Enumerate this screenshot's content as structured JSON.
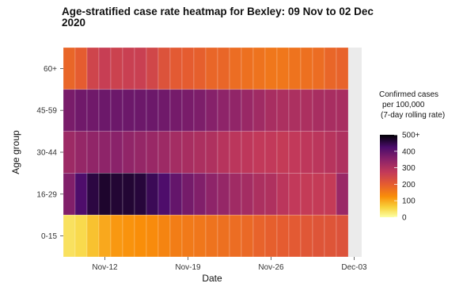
{
  "chart_data": {
    "type": "heatmap",
    "title_line1": "Age-stratified case rate heatmap for Bexley: 09 Nov to 02 Dec",
    "title_line2": "2020",
    "xlabel": "Date",
    "ylabel": "Age group",
    "x_start": "2020-11-09",
    "x_ticks": [
      {
        "label": "Nov-12",
        "date": "2020-11-12"
      },
      {
        "label": "Nov-19",
        "date": "2020-11-19"
      },
      {
        "label": "Nov-26",
        "date": "2020-11-26"
      },
      {
        "label": "Dec-03",
        "date": "2020-12-03"
      }
    ],
    "y_categories": [
      "60+",
      "45-59",
      "30-44",
      "16-29",
      "0-15"
    ],
    "dates": [
      "2020-11-09",
      "2020-11-10",
      "2020-11-11",
      "2020-11-12",
      "2020-11-13",
      "2020-11-14",
      "2020-11-15",
      "2020-11-16",
      "2020-11-17",
      "2020-11-18",
      "2020-11-19",
      "2020-11-20",
      "2020-11-21",
      "2020-11-22",
      "2020-11-23",
      "2020-11-24",
      "2020-11-25",
      "2020-11-26",
      "2020-11-27",
      "2020-11-28",
      "2020-11-29",
      "2020-11-30",
      "2020-12-01",
      "2020-12-02"
    ],
    "values": {
      "60+": [
        185,
        200,
        250,
        265,
        255,
        260,
        260,
        245,
        220,
        205,
        200,
        195,
        185,
        185,
        175,
        170,
        165,
        160,
        160,
        165,
        170,
        175,
        185,
        190
      ],
      "45-59": [
        370,
        380,
        380,
        385,
        385,
        385,
        385,
        385,
        380,
        375,
        370,
        365,
        355,
        345,
        340,
        330,
        320,
        310,
        305,
        305,
        305,
        310,
        310,
        310
      ],
      "30-44": [
        325,
        335,
        340,
        345,
        350,
        340,
        335,
        330,
        325,
        315,
        310,
        305,
        300,
        290,
        285,
        280,
        275,
        275,
        270,
        275,
        280,
        285,
        290,
        300
      ],
      "16-29": [
        360,
        420,
        455,
        470,
        465,
        465,
        460,
        440,
        420,
        395,
        375,
        360,
        345,
        335,
        320,
        315,
        305,
        300,
        285,
        275,
        270,
        270,
        270,
        330
      ],
      "0-15": [
        40,
        50,
        75,
        100,
        115,
        120,
        125,
        130,
        140,
        150,
        155,
        160,
        165,
        170,
        175,
        180,
        190,
        195,
        200,
        205,
        210,
        215,
        215,
        220
      ]
    },
    "legend": {
      "title_lines": [
        "Confirmed cases",
        "per 100,000",
        "(7-day rolling rate)"
      ],
      "ticks": [
        "500+",
        "400",
        "300",
        "200",
        "100",
        "0"
      ],
      "min": 0,
      "max": 500
    }
  }
}
